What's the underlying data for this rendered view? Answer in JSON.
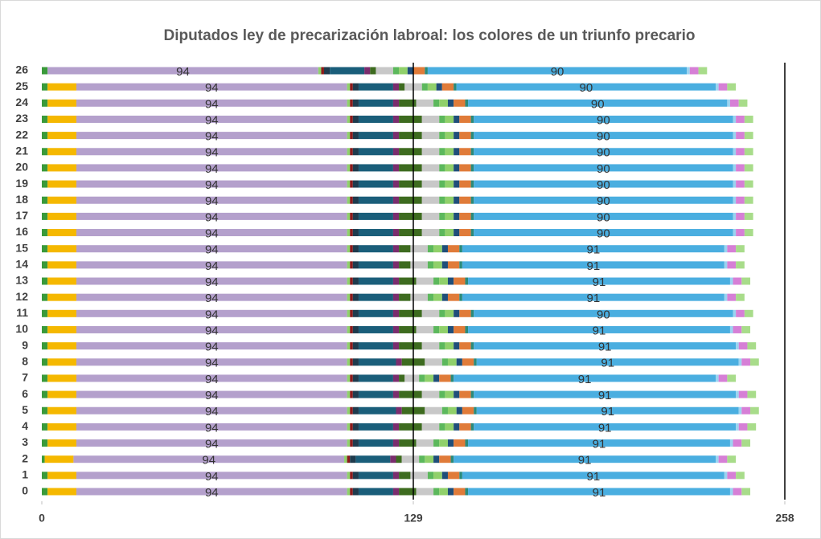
{
  "chart_data": {
    "type": "stacked-barh",
    "title": "Diputados ley de precarización labroal: los colores de un triunfo precario",
    "categories": [
      "0",
      "1",
      "2",
      "3",
      "4",
      "5",
      "6",
      "7",
      "8",
      "9",
      "10",
      "11",
      "12",
      "13",
      "14",
      "15",
      "16",
      "17",
      "18",
      "19",
      "20",
      "21",
      "22",
      "23",
      "24",
      "25",
      "26"
    ],
    "xlim": [
      0,
      258
    ],
    "xticks": [
      0,
      129,
      258
    ],
    "vlines": [
      129,
      258
    ],
    "series": [
      {
        "color": "#3a9a3a",
        "values": [
          2,
          2,
          1,
          2,
          2,
          2,
          2,
          2,
          2,
          2,
          2,
          2,
          2,
          2,
          2,
          2,
          2,
          2,
          2,
          2,
          2,
          2,
          2,
          2,
          2,
          2,
          2
        ]
      },
      {
        "color": "#f5b800",
        "values": [
          10,
          10,
          10,
          10,
          10,
          10,
          10,
          10,
          10,
          10,
          10,
          10,
          10,
          10,
          10,
          10,
          10,
          10,
          10,
          10,
          10,
          10,
          10,
          10,
          10,
          10,
          0
        ]
      },
      {
        "color": "#b4a0cc",
        "labels": true,
        "values": [
          94,
          94,
          94,
          94,
          94,
          94,
          94,
          94,
          94,
          94,
          94,
          94,
          94,
          94,
          94,
          94,
          94,
          94,
          94,
          94,
          94,
          94,
          94,
          94,
          94,
          94,
          94
        ]
      },
      {
        "color": "#8ed16b",
        "values": [
          1,
          1,
          1,
          1,
          1,
          1,
          1,
          1,
          1,
          1,
          1,
          1,
          1,
          1,
          1,
          1,
          1,
          1,
          1,
          1,
          1,
          1,
          1,
          1,
          1,
          1,
          1
        ]
      },
      {
        "color": "#8b1a1a",
        "values": [
          1,
          1,
          1,
          1,
          1,
          1,
          1,
          1,
          1,
          1,
          1,
          1,
          1,
          1,
          1,
          1,
          1,
          1,
          1,
          1,
          1,
          1,
          1,
          1,
          1,
          1,
          1
        ]
      },
      {
        "color": "#1f3b4d",
        "values": [
          2,
          2,
          2,
          2,
          2,
          2,
          2,
          2,
          2,
          2,
          2,
          2,
          2,
          2,
          2,
          2,
          2,
          2,
          2,
          2,
          2,
          2,
          2,
          2,
          2,
          2,
          2
        ]
      },
      {
        "color": "#1a5e7a",
        "values": [
          12,
          12,
          12,
          12,
          12,
          13,
          12,
          12,
          13,
          12,
          12,
          12,
          12,
          12,
          12,
          12,
          12,
          12,
          12,
          12,
          12,
          12,
          12,
          12,
          12,
          12,
          12
        ]
      },
      {
        "color": "#7b2d6e",
        "values": [
          2,
          2,
          2,
          2,
          2,
          2,
          2,
          2,
          2,
          2,
          2,
          2,
          2,
          2,
          2,
          2,
          2,
          2,
          2,
          2,
          2,
          2,
          2,
          2,
          2,
          2,
          2
        ]
      },
      {
        "color": "#3d6b1f",
        "values": [
          6,
          4,
          2,
          6,
          8,
          8,
          8,
          2,
          8,
          8,
          6,
          8,
          4,
          6,
          4,
          4,
          8,
          8,
          8,
          8,
          8,
          8,
          8,
          8,
          6,
          2,
          2
        ]
      },
      {
        "color": "#c8c8c8",
        "values": [
          6,
          6,
          6,
          6,
          6,
          6,
          6,
          5,
          6,
          6,
          6,
          6,
          6,
          6,
          6,
          6,
          6,
          6,
          6,
          6,
          6,
          6,
          6,
          6,
          6,
          6,
          6
        ]
      },
      {
        "color": "#5cb85c",
        "values": [
          2,
          2,
          2,
          2,
          2,
          2,
          2,
          2,
          2,
          2,
          2,
          2,
          2,
          2,
          2,
          2,
          2,
          2,
          2,
          2,
          2,
          2,
          2,
          2,
          2,
          2,
          2
        ]
      },
      {
        "color": "#90d06a",
        "values": [
          3,
          3,
          3,
          3,
          3,
          3,
          3,
          3,
          3,
          3,
          3,
          3,
          3,
          3,
          3,
          3,
          3,
          3,
          3,
          3,
          3,
          3,
          3,
          3,
          3,
          3,
          3
        ]
      },
      {
        "color": "#1f4e79",
        "values": [
          2,
          2,
          2,
          2,
          2,
          2,
          2,
          2,
          2,
          2,
          2,
          2,
          2,
          2,
          2,
          2,
          2,
          2,
          2,
          2,
          2,
          2,
          2,
          2,
          2,
          2,
          2
        ]
      },
      {
        "color": "#e07b39",
        "values": [
          4,
          4,
          4,
          4,
          4,
          4,
          4,
          4,
          4,
          4,
          4,
          4,
          4,
          4,
          4,
          4,
          4,
          4,
          4,
          4,
          4,
          4,
          4,
          4,
          4,
          4,
          4
        ]
      },
      {
        "color": "#2a8a7a",
        "values": [
          1,
          1,
          1,
          1,
          1,
          1,
          1,
          1,
          1,
          1,
          1,
          1,
          1,
          1,
          1,
          1,
          1,
          1,
          1,
          1,
          1,
          1,
          1,
          1,
          1,
          1,
          1
        ]
      },
      {
        "color": "#4aaee0",
        "labels": true,
        "values": [
          91,
          91,
          91,
          91,
          91,
          91,
          91,
          91,
          91,
          91,
          91,
          90,
          91,
          91,
          91,
          91,
          90,
          90,
          90,
          90,
          90,
          90,
          90,
          90,
          90,
          90,
          90
        ]
      },
      {
        "color": "#9bd3f0",
        "values": [
          1,
          1,
          1,
          1,
          1,
          1,
          1,
          1,
          1,
          1,
          1,
          1,
          1,
          1,
          1,
          1,
          1,
          1,
          1,
          1,
          1,
          1,
          1,
          1,
          1,
          1,
          1
        ]
      },
      {
        "color": "#d67fd6",
        "values": [
          3,
          3,
          3,
          3,
          3,
          3,
          3,
          3,
          3,
          3,
          3,
          3,
          3,
          3,
          3,
          3,
          3,
          3,
          3,
          3,
          3,
          3,
          3,
          3,
          3,
          3,
          3
        ]
      },
      {
        "color": "#a8dc8a",
        "values": [
          3,
          3,
          3,
          3,
          3,
          3,
          3,
          3,
          3,
          3,
          3,
          3,
          3,
          3,
          3,
          3,
          3,
          3,
          3,
          3,
          3,
          3,
          3,
          3,
          3,
          3,
          3
        ]
      }
    ]
  }
}
